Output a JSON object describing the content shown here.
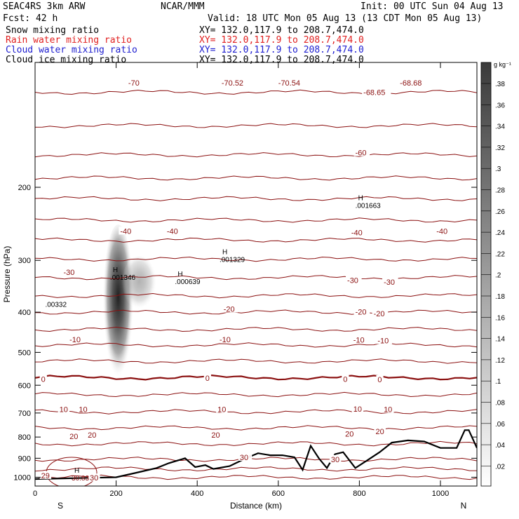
{
  "header": {
    "title_left": "SEAC4RS  3km ARW",
    "center": "NCAR/MMM",
    "init": "Init: 00 UTC Sun 04 Aug 13",
    "fcst": "Fcst:   42 h",
    "valid": "Valid: 18 UTC Mon 05 Aug 13 (13 CDT Mon 05 Aug 13)",
    "fields": [
      {
        "name": "Snow mixing ratio",
        "xy": "XY= 132.0,117.9 to 208.7,474.0",
        "color": "#000000"
      },
      {
        "name": "Rain water mixing ratio",
        "xy": "XY= 132.0,117.9 to 208.7,474.0",
        "color": "#e02020"
      },
      {
        "name": "Cloud water mixing ratio",
        "xy": "XY= 132.0,117.9 to 208.7,474.0",
        "color": "#2020d0"
      },
      {
        "name": "Cloud ice mixing ratio",
        "xy": "XY= 132.0,117.9 to 208.7,474.0",
        "color": "#000000"
      }
    ]
  },
  "colorbar": {
    "unit": "g kg⁻¹",
    "labels": [
      ".38",
      ".36",
      ".34",
      ".32",
      ".3",
      ".28",
      ".26",
      ".24",
      ".22",
      ".2",
      ".18",
      ".16",
      ".14",
      ".12",
      ".1",
      ".08",
      ".06",
      ".04",
      ".02"
    ]
  },
  "chart_data": {
    "type": "cross-section contour",
    "xlabel": "Distance (km)",
    "ylabel": "Pressure (hPa)",
    "xlim": [
      0,
      1090
    ],
    "ylim": [
      1050,
      100
    ],
    "x_ticks": [
      "0",
      "200",
      "400",
      "600",
      "800",
      "1000"
    ],
    "y_ticks": [
      "1000",
      "900",
      "800",
      "700",
      "600",
      "500",
      "400",
      "300",
      "200"
    ],
    "x_end_labels": [
      "S",
      "N"
    ],
    "temperature_contours": [
      {
        "label": "-70",
        "values": [
          -70
        ]
      },
      {
        "label": "-60",
        "values": [
          -60
        ]
      },
      {
        "label": "-40",
        "values": [
          -40
        ]
      },
      {
        "label": "-30",
        "values": [
          -30
        ]
      },
      {
        "label": "-20",
        "values": [
          -20
        ]
      },
      {
        "label": "-10",
        "values": [
          -10
        ]
      },
      {
        "label": "0",
        "values": [
          0
        ]
      },
      {
        "label": "10",
        "values": [
          10
        ]
      },
      {
        "label": "20",
        "values": [
          20
        ]
      },
      {
        "label": "30",
        "values": [
          30
        ]
      }
    ],
    "contour_labels": [
      {
        "text": "-70",
        "x": 230,
        "p": 112
      },
      {
        "text": "-70.52",
        "x": 460,
        "p": 112
      },
      {
        "text": "-70.54",
        "x": 600,
        "p": 112
      },
      {
        "text": "-68.65",
        "x": 810,
        "p": 118
      },
      {
        "text": "-68.68",
        "x": 900,
        "p": 112
      },
      {
        "text": "-60",
        "x": 790,
        "p": 165
      },
      {
        "text": "-40",
        "x": 210,
        "p": 255
      },
      {
        "text": "-40",
        "x": 325,
        "p": 255
      },
      {
        "text": "-40",
        "x": 780,
        "p": 257
      },
      {
        "text": "-40",
        "x": 990,
        "p": 255
      },
      {
        "text": "-30",
        "x": 70,
        "p": 320
      },
      {
        "text": "-30",
        "x": 770,
        "p": 335
      },
      {
        "text": "-30",
        "x": 860,
        "p": 338
      },
      {
        "text": "-20",
        "x": 465,
        "p": 393
      },
      {
        "text": "-20",
        "x": 790,
        "p": 399
      },
      {
        "text": "-20",
        "x": 835,
        "p": 403
      },
      {
        "text": "-10",
        "x": 85,
        "p": 465
      },
      {
        "text": "-10",
        "x": 455,
        "p": 465
      },
      {
        "text": "-10",
        "x": 785,
        "p": 466
      },
      {
        "text": "-10",
        "x": 845,
        "p": 468
      },
      {
        "text": "0",
        "x": 15,
        "p": 580
      },
      {
        "text": "0",
        "x": 420,
        "p": 577
      },
      {
        "text": "0",
        "x": 760,
        "p": 580
      },
      {
        "text": "0",
        "x": 845,
        "p": 581
      },
      {
        "text": "10",
        "x": 60,
        "p": 685
      },
      {
        "text": "10",
        "x": 108,
        "p": 685
      },
      {
        "text": "10",
        "x": 450,
        "p": 685
      },
      {
        "text": "10",
        "x": 785,
        "p": 684
      },
      {
        "text": "10",
        "x": 860,
        "p": 686
      },
      {
        "text": "20",
        "x": 85,
        "p": 796
      },
      {
        "text": "20",
        "x": 130,
        "p": 791
      },
      {
        "text": "20",
        "x": 435,
        "p": 791
      },
      {
        "text": "20",
        "x": 765,
        "p": 785
      },
      {
        "text": "20",
        "x": 840,
        "p": 775
      },
      {
        "text": "30",
        "x": 510,
        "p": 890
      },
      {
        "text": "30",
        "x": 730,
        "p": 905
      },
      {
        "text": "30",
        "x": 505,
        "p": 895
      },
      {
        "text": "30",
        "x": 135,
        "p": 1003
      },
      {
        "text": "29",
        "x": 15,
        "p": 990
      }
    ],
    "extrema": [
      {
        "text": "H .001663",
        "x": 790,
        "p": 215
      },
      {
        "text": "H .001329",
        "x": 455,
        "p": 290
      },
      {
        "text": "H .001346",
        "x": 185,
        "p": 320
      },
      {
        "text": "H .000639",
        "x": 345,
        "p": 328
      },
      {
        "text": ".00332",
        "x": 25,
        "p": 388
      },
      {
        "text": "H 30.83",
        "x": 90,
        "p": 975
      }
    ],
    "snow_max_location": {
      "x": 205,
      "p": 400
    },
    "terrain": [
      [
        0,
        1010
      ],
      [
        200,
        1000
      ],
      [
        250,
        975
      ],
      [
        300,
        950
      ],
      [
        330,
        925
      ],
      [
        370,
        900
      ],
      [
        395,
        945
      ],
      [
        420,
        935
      ],
      [
        440,
        955
      ],
      [
        480,
        940
      ],
      [
        520,
        900
      ],
      [
        550,
        875
      ],
      [
        580,
        885
      ],
      [
        610,
        885
      ],
      [
        640,
        895
      ],
      [
        660,
        960
      ],
      [
        680,
        840
      ],
      [
        700,
        900
      ],
      [
        720,
        950
      ],
      [
        740,
        880
      ],
      [
        760,
        870
      ],
      [
        790,
        950
      ],
      [
        820,
        910
      ],
      [
        850,
        870
      ],
      [
        880,
        825
      ],
      [
        920,
        815
      ],
      [
        960,
        820
      ],
      [
        1000,
        850
      ],
      [
        1040,
        850
      ],
      [
        1060,
        770
      ],
      [
        1070,
        770
      ],
      [
        1090,
        850
      ]
    ]
  }
}
